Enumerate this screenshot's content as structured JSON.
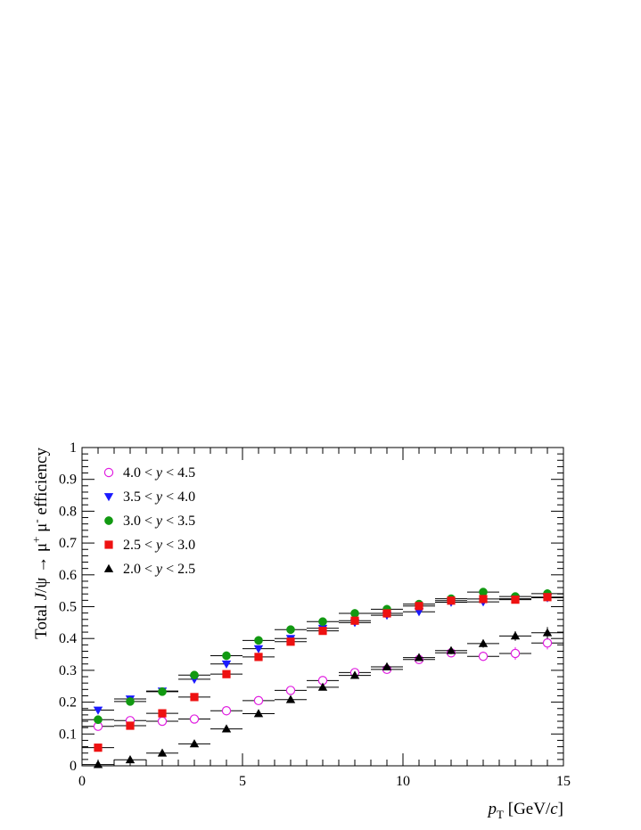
{
  "chart_data": {
    "type": "scatter",
    "x_centers": [
      0.5,
      1.5,
      2.5,
      3.5,
      4.5,
      5.5,
      6.5,
      7.5,
      8.5,
      9.5,
      10.5,
      11.5,
      12.5,
      13.5,
      14.5
    ],
    "x_halfwidth": 0.5,
    "xlim": [
      0,
      15
    ],
    "ylim": [
      0,
      1
    ],
    "xticks": [
      0,
      5,
      10,
      15
    ],
    "yticks": [
      0,
      0.1,
      0.2,
      0.3,
      0.4,
      0.5,
      0.6,
      0.7,
      0.8,
      0.9,
      1
    ],
    "xtick_labels": [
      "0",
      "5",
      "10",
      "15"
    ],
    "ytick_labels": [
      "0",
      "0.1",
      "0.2",
      "0.3",
      "0.4",
      "0.5",
      "0.6",
      "0.7",
      "0.8",
      "0.9",
      "1"
    ],
    "xlabel": {
      "var": "p",
      "sub": "T",
      "unit_pre": " [GeV/",
      "unit_var": "c",
      "unit_post": "]"
    },
    "ylabel": {
      "pre": "Total ",
      "var": "J",
      "mid": "/ψ → μ",
      "sup1": "+",
      "mid2": " μ",
      "sup2": "-",
      "post": " efficiency"
    },
    "legend_position": "top-left",
    "series": [
      {
        "name": "4.0 < y < 4.5",
        "legend": {
          "pre": "4.0 < ",
          "var": "y",
          "post": " < 4.5"
        },
        "marker": "open-circle",
        "color": "#e01ee0",
        "values": [
          0.124,
          0.142,
          0.14,
          0.147,
          0.173,
          0.205,
          0.237,
          0.268,
          0.293,
          0.303,
          0.334,
          0.355,
          0.344,
          0.353,
          0.386
        ],
        "errors": [
          0.005,
          0.005,
          0.005,
          0.005,
          0.006,
          0.006,
          0.007,
          0.008,
          0.008,
          0.009,
          0.01,
          0.012,
          0.015,
          0.02,
          0.02
        ]
      },
      {
        "name": "3.5 < y < 4.0",
        "legend": {
          "pre": "3.5 < ",
          "var": "y",
          "post": " < 4.0"
        },
        "marker": "down-triangle",
        "color": "#1a1aff",
        "values": [
          0.175,
          0.21,
          0.235,
          0.272,
          0.32,
          0.368,
          0.4,
          0.432,
          0.45,
          0.473,
          0.484,
          0.514,
          0.515,
          0.525,
          0.528
        ],
        "errors": [
          0.004,
          0.004,
          0.004,
          0.004,
          0.005,
          0.005,
          0.005,
          0.006,
          0.006,
          0.007,
          0.007,
          0.008,
          0.009,
          0.01,
          0.01
        ]
      },
      {
        "name": "3.0 < y < 3.5",
        "legend": {
          "pre": "3.0 < ",
          "var": "y",
          "post": " < 3.5"
        },
        "marker": "filled-circle",
        "color": "#119911",
        "values": [
          0.145,
          0.202,
          0.233,
          0.285,
          0.346,
          0.394,
          0.428,
          0.453,
          0.479,
          0.492,
          0.508,
          0.525,
          0.546,
          0.532,
          0.541
        ],
        "errors": [
          0.004,
          0.004,
          0.004,
          0.004,
          0.005,
          0.005,
          0.005,
          0.006,
          0.006,
          0.007,
          0.007,
          0.008,
          0.009,
          0.01,
          0.01
        ]
      },
      {
        "name": "2.5 < y < 3.0",
        "legend": {
          "pre": "2.5 < ",
          "var": "y",
          "post": " < 3.0"
        },
        "marker": "filled-square",
        "color": "#ee1111",
        "values": [
          0.057,
          0.126,
          0.165,
          0.216,
          0.288,
          0.342,
          0.39,
          0.424,
          0.456,
          0.479,
          0.502,
          0.519,
          0.524,
          0.522,
          0.53
        ],
        "errors": [
          0.004,
          0.004,
          0.004,
          0.004,
          0.005,
          0.005,
          0.005,
          0.006,
          0.006,
          0.007,
          0.007,
          0.008,
          0.009,
          0.01,
          0.01
        ]
      },
      {
        "name": "2.0 < y < 2.5",
        "legend": {
          "pre": "2.0 < ",
          "var": "y",
          "post": " < 2.5"
        },
        "marker": "up-triangle",
        "color": "#000000",
        "values": [
          0.004,
          0.019,
          0.04,
          0.069,
          0.116,
          0.164,
          0.208,
          0.247,
          0.284,
          0.311,
          0.34,
          0.362,
          0.384,
          0.408,
          0.418
        ],
        "errors": [
          0.003,
          0.003,
          0.003,
          0.004,
          0.005,
          0.005,
          0.006,
          0.007,
          0.008,
          0.009,
          0.01,
          0.011,
          0.013,
          0.015,
          0.018
        ]
      }
    ]
  }
}
